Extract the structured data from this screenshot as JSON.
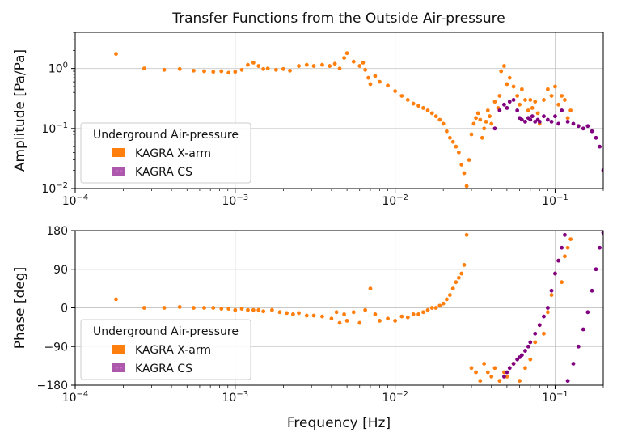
{
  "title": "Transfer Functions from the Outside Air-pressure",
  "xlabel": "Frequency [Hz]",
  "colors": {
    "xarm": "#ff7f0e",
    "cs": "#800080"
  },
  "chart_data": [
    {
      "type": "scatter",
      "panel": "amplitude",
      "xscale": "log",
      "yscale": "log",
      "xlim": [
        0.0001,
        0.2
      ],
      "ylim": [
        0.01,
        4
      ],
      "ylabel": "Amplitude [Pa/Pa]",
      "x_ticks": [
        {
          "value": 0.0001,
          "base": "10",
          "exp": "−4"
        },
        {
          "value": 0.001,
          "base": "10",
          "exp": "−3"
        },
        {
          "value": 0.01,
          "base": "10",
          "exp": "−2"
        },
        {
          "value": 0.1,
          "base": "10",
          "exp": "−1"
        }
      ],
      "y_ticks": [
        {
          "value": 0.01,
          "base": "10",
          "exp": "−2"
        },
        {
          "value": 0.1,
          "base": "10",
          "exp": "−1"
        },
        {
          "value": 1,
          "base": "10",
          "exp": "0"
        }
      ],
      "legend": {
        "title": "Underground Air-pressure",
        "location": "lower-left",
        "entries": [
          "KAGRA X-arm",
          "KAGRA CS"
        ]
      },
      "series": [
        {
          "name": "KAGRA X-arm",
          "x": [
            0.00018,
            0.00027,
            0.00036,
            0.00045,
            0.00055,
            0.00064,
            0.00073,
            0.00082,
            0.00091,
            0.001,
            0.0011,
            0.0012,
            0.0013,
            0.0014,
            0.0015,
            0.0016,
            0.0018,
            0.002,
            0.0022,
            0.0025,
            0.0028,
            0.0031,
            0.0035,
            0.0039,
            0.0042,
            0.0045,
            0.0048,
            0.005,
            0.0055,
            0.006,
            0.0063,
            0.0065,
            0.0068,
            0.007,
            0.0075,
            0.008,
            0.009,
            0.01,
            0.011,
            0.012,
            0.013,
            0.014,
            0.015,
            0.016,
            0.017,
            0.018,
            0.019,
            0.02,
            0.021,
            0.022,
            0.023,
            0.024,
            0.025,
            0.026,
            0.027,
            0.028,
            0.029,
            0.03,
            0.031,
            0.032,
            0.033,
            0.034,
            0.035,
            0.036,
            0.037,
            0.038,
            0.039,
            0.04,
            0.042,
            0.044,
            0.045,
            0.046,
            0.048,
            0.05,
            0.052,
            0.055,
            0.058,
            0.06,
            0.062,
            0.065,
            0.068,
            0.07,
            0.072,
            0.075,
            0.078,
            0.08,
            0.085,
            0.09,
            0.095,
            0.1,
            0.105,
            0.11,
            0.115,
            0.12,
            0.125
          ],
          "values": [
            1.75,
            1.0,
            0.95,
            0.98,
            0.92,
            0.9,
            0.88,
            0.9,
            0.85,
            0.88,
            0.95,
            1.15,
            1.25,
            1.1,
            0.98,
            1.0,
            0.95,
            0.98,
            0.92,
            1.1,
            1.15,
            1.1,
            1.15,
            1.1,
            1.2,
            1.0,
            1.5,
            1.8,
            1.3,
            1.1,
            1.25,
            0.95,
            0.7,
            0.55,
            0.75,
            0.6,
            0.52,
            0.42,
            0.35,
            0.3,
            0.26,
            0.24,
            0.22,
            0.2,
            0.18,
            0.16,
            0.14,
            0.12,
            0.09,
            0.07,
            0.06,
            0.05,
            0.04,
            0.025,
            0.018,
            0.011,
            0.03,
            0.08,
            0.12,
            0.15,
            0.18,
            0.14,
            0.07,
            0.1,
            0.13,
            0.2,
            0.16,
            0.12,
            0.28,
            0.22,
            0.35,
            0.9,
            1.1,
            0.55,
            0.7,
            0.5,
            0.35,
            0.25,
            0.45,
            0.3,
            0.2,
            0.3,
            0.22,
            0.28,
            0.18,
            0.12,
            0.3,
            0.45,
            0.35,
            0.5,
            0.25,
            0.35,
            0.3,
            0.15,
            0.2
          ]
        },
        {
          "name": "KAGRA CS",
          "x": [
            0.042,
            0.045,
            0.048,
            0.05,
            0.052,
            0.055,
            0.058,
            0.06,
            0.062,
            0.065,
            0.068,
            0.07,
            0.072,
            0.075,
            0.078,
            0.08,
            0.085,
            0.09,
            0.095,
            0.1,
            0.105,
            0.11,
            0.12,
            0.13,
            0.14,
            0.15,
            0.16,
            0.17,
            0.18,
            0.19,
            0.2
          ],
          "values": [
            0.1,
            0.2,
            0.25,
            0.22,
            0.28,
            0.3,
            0.2,
            0.15,
            0.14,
            0.13,
            0.15,
            0.14,
            0.16,
            0.13,
            0.14,
            0.13,
            0.16,
            0.14,
            0.13,
            0.16,
            0.12,
            0.2,
            0.13,
            0.12,
            0.11,
            0.1,
            0.11,
            0.09,
            0.07,
            0.05,
            0.02
          ]
        }
      ]
    },
    {
      "type": "scatter",
      "panel": "phase",
      "xscale": "log",
      "yscale": "linear",
      "xlim": [
        0.0001,
        0.2
      ],
      "ylim": [
        -180,
        180
      ],
      "ylabel": "Phase [deg]",
      "x_ticks": [
        {
          "value": 0.0001,
          "base": "10",
          "exp": "−4"
        },
        {
          "value": 0.001,
          "base": "10",
          "exp": "−3"
        },
        {
          "value": 0.01,
          "base": "10",
          "exp": "−2"
        },
        {
          "value": 0.1,
          "base": "10",
          "exp": "−1"
        }
      ],
      "y_ticks": [
        {
          "value": -180,
          "label": "−180"
        },
        {
          "value": -90,
          "label": "−90"
        },
        {
          "value": 0,
          "label": "0"
        },
        {
          "value": 90,
          "label": "90"
        },
        {
          "value": 180,
          "label": "180"
        }
      ],
      "legend": {
        "title": "Underground Air-pressure",
        "location": "lower-left",
        "entries": [
          "KAGRA X-arm",
          "KAGRA CS"
        ]
      },
      "series": [
        {
          "name": "KAGRA X-arm",
          "x": [
            0.00018,
            0.00027,
            0.00036,
            0.00045,
            0.00055,
            0.00064,
            0.00073,
            0.00082,
            0.00091,
            0.001,
            0.0011,
            0.0012,
            0.0013,
            0.0014,
            0.0015,
            0.0017,
            0.0019,
            0.0021,
            0.0023,
            0.0025,
            0.0028,
            0.0031,
            0.0035,
            0.004,
            0.0043,
            0.0045,
            0.0048,
            0.005,
            0.0055,
            0.006,
            0.0065,
            0.007,
            0.0075,
            0.008,
            0.009,
            0.01,
            0.011,
            0.012,
            0.013,
            0.014,
            0.015,
            0.016,
            0.017,
            0.018,
            0.019,
            0.02,
            0.021,
            0.022,
            0.023,
            0.024,
            0.025,
            0.026,
            0.027,
            0.028,
            0.03,
            0.032,
            0.034,
            0.036,
            0.038,
            0.04,
            0.042,
            0.045,
            0.048,
            0.05,
            0.055,
            0.06,
            0.065,
            0.07,
            0.075,
            0.08,
            0.085,
            0.09,
            0.095,
            0.1,
            0.105,
            0.11,
            0.115,
            0.12,
            0.125
          ],
          "values": [
            20,
            0,
            0,
            2,
            0,
            0,
            0,
            -2,
            -2,
            -5,
            -2,
            -5,
            -5,
            -5,
            -8,
            -5,
            -10,
            -12,
            -15,
            -12,
            -18,
            -18,
            -20,
            -25,
            -10,
            -35,
            -15,
            -30,
            -10,
            -35,
            -5,
            45,
            -15,
            -30,
            -25,
            -30,
            -20,
            -22,
            -15,
            -15,
            -10,
            -5,
            0,
            0,
            5,
            10,
            20,
            30,
            45,
            60,
            70,
            80,
            100,
            170,
            -140,
            -150,
            -170,
            -130,
            -150,
            -160,
            -140,
            -170,
            -150,
            -160,
            -130,
            -170,
            -140,
            -120,
            -80,
            -40,
            -60,
            -10,
            30,
            80,
            110,
            60,
            120,
            140,
            160
          ]
        },
        {
          "name": "KAGRA CS",
          "x": [
            0.048,
            0.05,
            0.052,
            0.055,
            0.058,
            0.06,
            0.062,
            0.065,
            0.068,
            0.07,
            0.075,
            0.08,
            0.085,
            0.09,
            0.095,
            0.1,
            0.105,
            0.11,
            0.115,
            0.12,
            0.13,
            0.14,
            0.15,
            0.16,
            0.17,
            0.18,
            0.19,
            0.2
          ],
          "values": [
            -160,
            -150,
            -140,
            -130,
            -120,
            -115,
            -110,
            -100,
            -90,
            -80,
            -60,
            -40,
            -20,
            0,
            40,
            80,
            110,
            140,
            170,
            -170,
            -130,
            -90,
            -50,
            -10,
            40,
            90,
            140,
            175
          ]
        }
      ]
    }
  ]
}
